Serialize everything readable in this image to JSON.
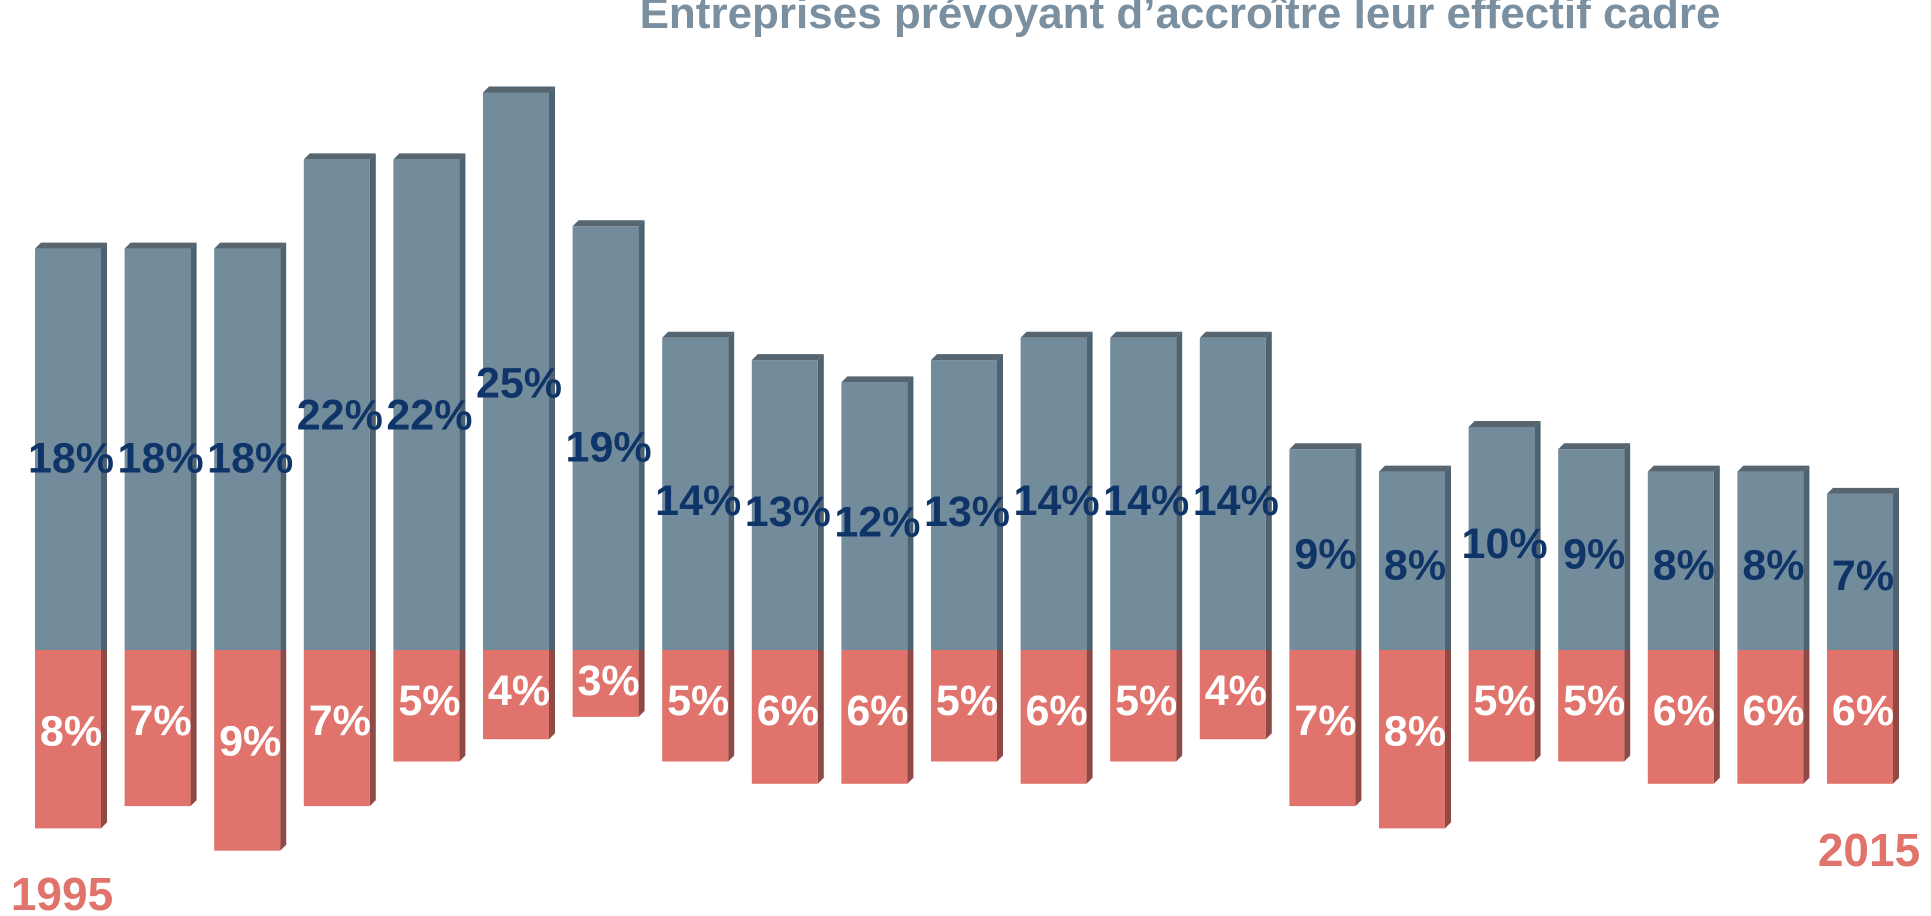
{
  "chart_data": {
    "type": "bar",
    "title": "Entreprises prévoyant d’accroître leur effectif cadre",
    "start_label": "1995",
    "end_label": "2015",
    "series": [
      {
        "values": [
          18,
          18,
          18,
          22,
          22,
          25,
          19,
          14,
          13,
          12,
          13,
          14,
          14,
          14,
          9,
          8,
          10,
          9,
          8,
          8,
          7
        ],
        "labels": [
          "18%",
          "18%",
          "18%",
          "22%",
          "22%",
          "25%",
          "19%",
          "14%",
          "13%",
          "12%",
          "13%",
          "14%",
          "14%",
          "14%",
          "9%",
          "8%",
          "10%",
          "9%",
          "8%",
          "8%",
          "7%"
        ]
      },
      {
        "values": [
          8,
          7,
          9,
          7,
          5,
          4,
          3,
          5,
          6,
          6,
          5,
          6,
          5,
          4,
          7,
          8,
          5,
          5,
          6,
          6,
          6
        ],
        "labels": [
          "8%",
          "7%",
          "9%",
          "7%",
          "5%",
          "4%",
          "3%",
          "5%",
          "6%",
          "6%",
          "5%",
          "6%",
          "5%",
          "4%",
          "7%",
          "8%",
          "5%",
          "5%",
          "6%",
          "6%",
          "6%"
        ]
      }
    ],
    "colors": {
      "up_bar": "#738c9c",
      "up_side": "#4f6270",
      "up_top": "#56656f",
      "down_bar": "#e0736c",
      "down_side": "#8f4a46",
      "up_label": "#0f3568",
      "down_label": "#ffffff",
      "title": "#7a8f9f",
      "year": "#e0736c"
    },
    "grid": false,
    "legend": "none"
  }
}
